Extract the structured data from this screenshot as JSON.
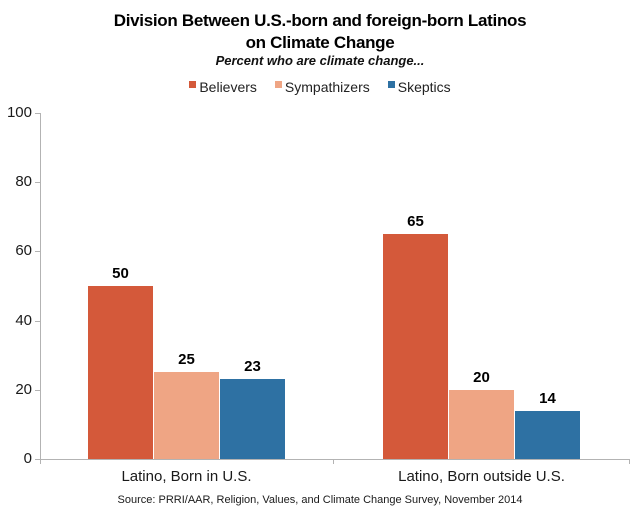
{
  "chart_data": {
    "type": "bar",
    "title": "Division Between U.S.-born and foreign-born Latinos on Climate Change",
    "title_lines": [
      "Division Between U.S.-born and foreign-born Latinos",
      "on Climate Change"
    ],
    "subtitle": "Percent who are climate change...",
    "categories": [
      "Latino, Born in U.S.",
      "Latino, Born outside U.S."
    ],
    "series": [
      {
        "name": "Believers",
        "color": "#d4593a",
        "values": [
          50,
          65
        ]
      },
      {
        "name": "Sympathizers",
        "color": "#efa584",
        "values": [
          25,
          20
        ]
      },
      {
        "name": "Skeptics",
        "color": "#2e71a3",
        "values": [
          23,
          14
        ]
      }
    ],
    "ylim": [
      0,
      100
    ],
    "yticks": [
      0,
      20,
      40,
      60,
      80,
      100
    ],
    "grid": false,
    "legend_position": "top",
    "value_labels": true,
    "axis_color": "#b3b3b3",
    "source": "Source: PRRI/AAR, Religion, Values, and Climate Change Survey, November 2014"
  }
}
